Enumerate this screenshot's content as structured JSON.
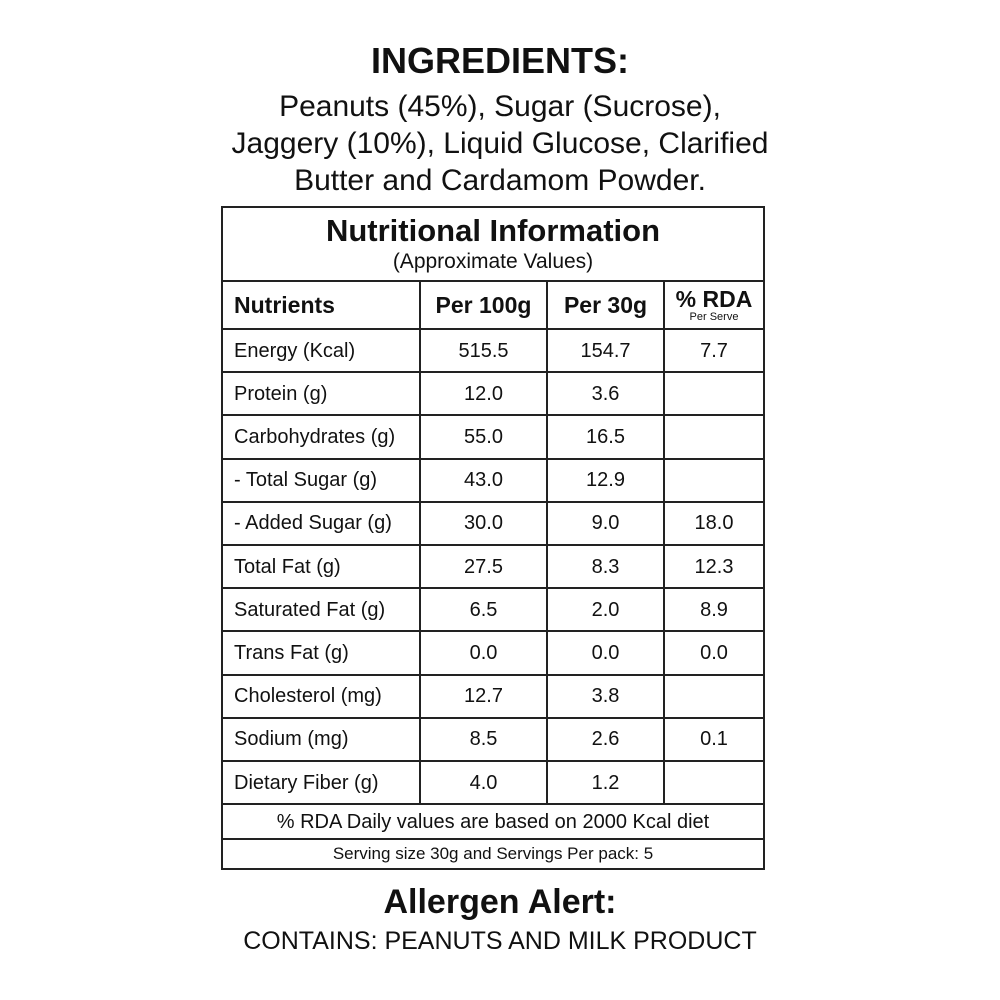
{
  "ingredients": {
    "title": "INGREDIENTS:",
    "lines": [
      "Peanuts (45%), Sugar  (Sucrose),",
      "Jaggery (10%), Liquid Glucose, Clarified",
      "Butter and Cardamom Powder."
    ]
  },
  "nutrition": {
    "title": "Nutritional Information",
    "subtitle": "(Approximate Values)",
    "headers": [
      "Nutrients",
      "Per 100g",
      "Per 30g",
      "% RDA"
    ],
    "rda_sub": "Per Serve",
    "rows": [
      [
        "Energy (Kcal)",
        "515.5",
        "154.7",
        "7.7"
      ],
      [
        "Protein (g)",
        "12.0",
        "3.6",
        ""
      ],
      [
        "Carbohydrates (g)",
        "55.0",
        "16.5",
        ""
      ],
      [
        "- Total Sugar (g)",
        "43.0",
        "12.9",
        ""
      ],
      [
        "- Added Sugar (g)",
        "30.0",
        "9.0",
        "18.0"
      ],
      [
        "Total Fat (g)",
        "27.5",
        "8.3",
        "12.3"
      ],
      [
        "Saturated Fat (g)",
        "6.5",
        "2.0",
        "8.9"
      ],
      [
        "Trans Fat (g)",
        "0.0",
        "0.0",
        "0.0"
      ],
      [
        "Cholesterol (mg)",
        "12.7",
        "3.8",
        ""
      ],
      [
        "Sodium (mg)",
        "8.5",
        "2.6",
        "0.1"
      ],
      [
        "Dietary Fiber (g)",
        "4.0",
        "1.2",
        ""
      ]
    ],
    "footnote": "% RDA Daily values are based on 2000 Kcal diet",
    "serving": "Serving size 30g and Servings Per pack: 5"
  },
  "allergen": {
    "title": "Allergen Alert:",
    "text": "CONTAINS: PEANUTS AND MILK PRODUCT"
  }
}
